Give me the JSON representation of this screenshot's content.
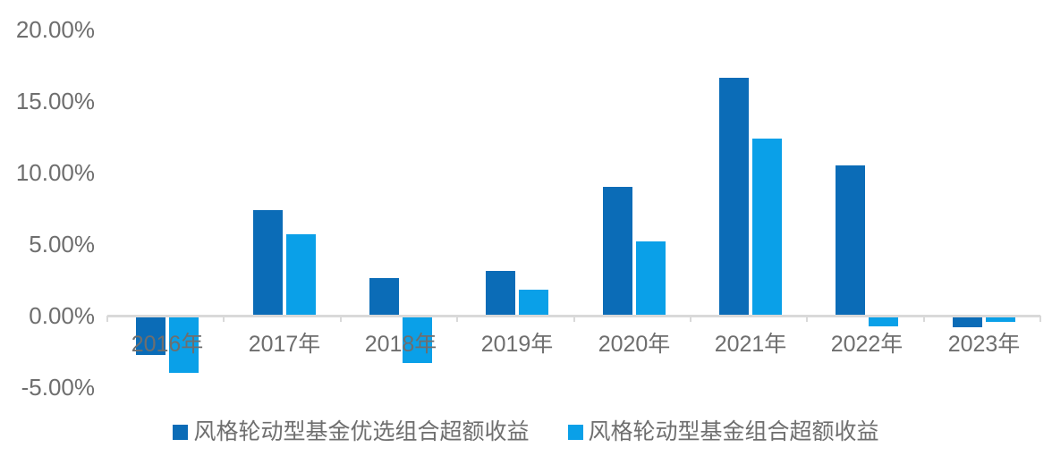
{
  "chart_data": {
    "type": "bar",
    "title": "",
    "xlabel": "",
    "ylabel": "",
    "categories": [
      "2016年",
      "2017年",
      "2018年",
      "2019年",
      "2020年",
      "2021年",
      "2022年",
      "2023年"
    ],
    "series": [
      {
        "name": "风格轮动型基金优选组合超额收益",
        "color": "#0B6CB7",
        "values": [
          -2.6,
          7.4,
          2.6,
          3.1,
          9.0,
          16.6,
          10.5,
          -0.7
        ]
      },
      {
        "name": "风格轮动型基金组合超额收益",
        "color": "#0AA0E8",
        "values": [
          -3.9,
          5.7,
          -3.2,
          1.8,
          5.2,
          12.4,
          -0.6,
          -0.3
        ]
      }
    ],
    "y_ticks": [
      {
        "label": "20.00%",
        "value": 20
      },
      {
        "label": "15.00%",
        "value": 15
      },
      {
        "label": "10.00%",
        "value": 10
      },
      {
        "label": "5.00%",
        "value": 5
      },
      {
        "label": "0.00%",
        "value": 0
      },
      {
        "label": "-5.00%",
        "value": -5
      }
    ],
    "ylim": [
      -5,
      20
    ],
    "grid": false,
    "legend_position": "bottom",
    "axis_color": "#D9D9D9",
    "text_color": "#6E6E6E",
    "background_color": "#FFFFFF"
  }
}
